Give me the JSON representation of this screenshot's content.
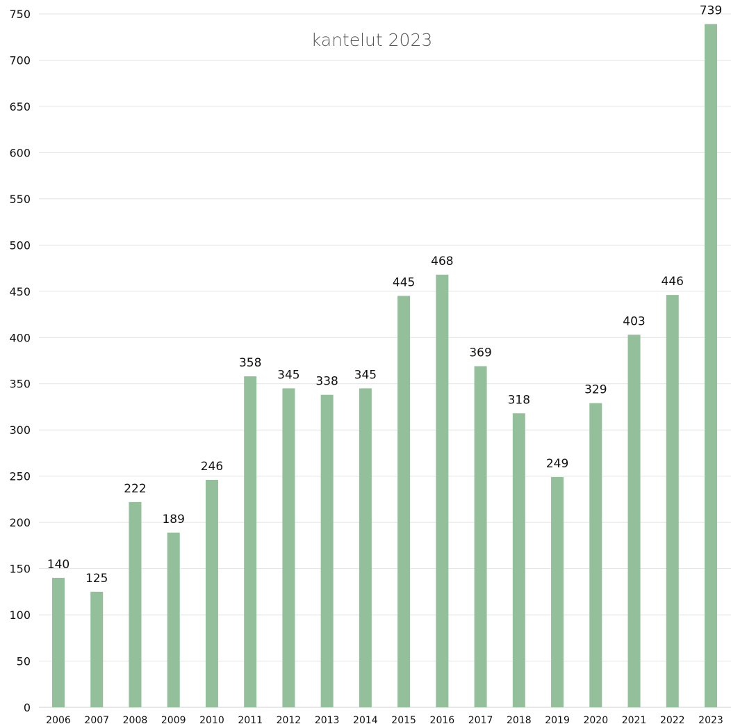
{
  "chart_data": {
    "type": "bar",
    "title": "kantelut 2023",
    "xlabel": "",
    "ylabel": "",
    "ylim": [
      0,
      750
    ],
    "yticks": [
      0,
      50,
      100,
      150,
      200,
      250,
      300,
      350,
      400,
      450,
      500,
      550,
      600,
      650,
      700,
      750
    ],
    "grid": true,
    "categories": [
      "2006",
      "2007",
      "2008",
      "2009",
      "2010",
      "2011",
      "2012",
      "2013",
      "2014",
      "2015",
      "2016",
      "2017",
      "2018",
      "2019",
      "2020",
      "2021",
      "2022",
      "2023"
    ],
    "values": [
      140,
      125,
      222,
      189,
      246,
      358,
      345,
      338,
      345,
      445,
      468,
      369,
      318,
      249,
      329,
      403,
      446,
      739
    ],
    "bar_color": "#93bf9a"
  }
}
